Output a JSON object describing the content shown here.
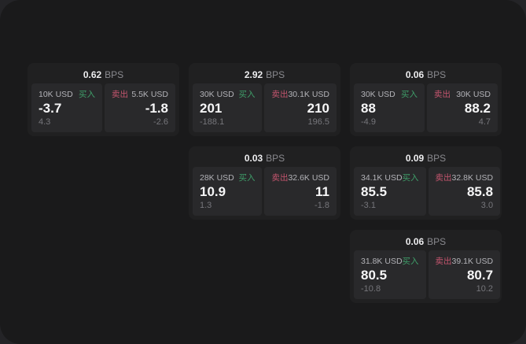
{
  "labels": {
    "bps": "BPS",
    "buy": "买入",
    "sell": "卖出"
  },
  "colors": {
    "background": "#1a1a1b",
    "card": "#202021",
    "panel": "#29292b",
    "buy_accent": "#3f9e69",
    "sell_accent": "#c4556e",
    "price_text": "#f6f6f7",
    "muted_text": "#76767b"
  },
  "cards": [
    {
      "bps": "0.62",
      "buy": {
        "size": "10K USD",
        "price": "-3.7",
        "delta": "4.3"
      },
      "sell": {
        "size": "5.5K USD",
        "price": "-1.8",
        "delta": "-2.6"
      }
    },
    {
      "bps": "2.92",
      "buy": {
        "size": "30K USD",
        "price": "201",
        "delta": "-188.1"
      },
      "sell": {
        "size": "30.1K USD",
        "price": "210",
        "delta": "196.5"
      }
    },
    {
      "bps": "0.06",
      "buy": {
        "size": "30K USD",
        "price": "88",
        "delta": "-4.9"
      },
      "sell": {
        "size": "30K USD",
        "price": "88.2",
        "delta": "4.7"
      }
    },
    {
      "bps": "0.03",
      "buy": {
        "size": "28K USD",
        "price": "10.9",
        "delta": "1.3"
      },
      "sell": {
        "size": "32.6K USD",
        "price": "11",
        "delta": "-1.8"
      }
    },
    {
      "bps": "0.09",
      "buy": {
        "size": "34.1K USD",
        "price": "85.5",
        "delta": "-3.1"
      },
      "sell": {
        "size": "32.8K USD",
        "price": "85.8",
        "delta": "3.0"
      }
    },
    {
      "bps": "0.06",
      "buy": {
        "size": "31.8K USD",
        "price": "80.5",
        "delta": "-10.8"
      },
      "sell": {
        "size": "39.1K USD",
        "price": "80.7",
        "delta": "10.2"
      }
    }
  ]
}
